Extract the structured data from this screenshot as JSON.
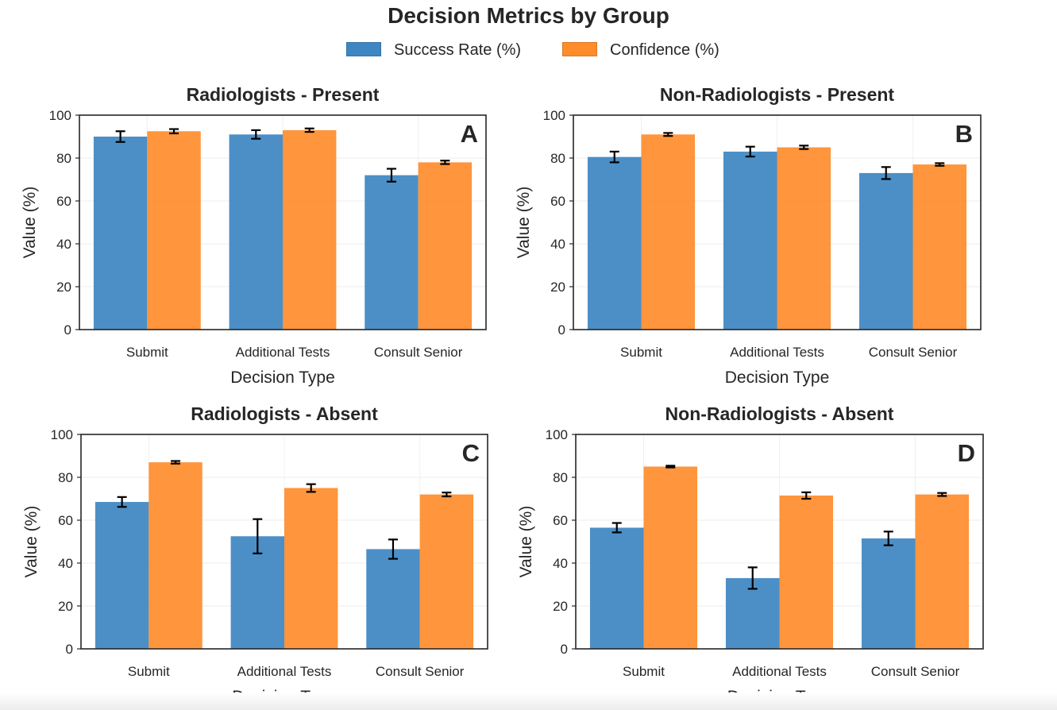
{
  "figure": {
    "title": "Decision Metrics by Group",
    "legend": [
      {
        "label": "Success Rate (%)",
        "color": "#3d86c2"
      },
      {
        "label": "Confidence (%)",
        "color": "#ff8c2b"
      }
    ]
  },
  "chart_data": [
    {
      "type": "bar",
      "panel_letter": "A",
      "title": "Radiologists - Present",
      "xlabel": "Decision Type",
      "ylabel": "Value (%)",
      "ylim": [
        0,
        100
      ],
      "yticks": [
        0,
        20,
        40,
        60,
        80,
        100
      ],
      "grid": true,
      "categories": [
        "Submit",
        "Additional Tests",
        "Consult Senior"
      ],
      "series": [
        {
          "name": "Success Rate (%)",
          "values": [
            90,
            91,
            72
          ],
          "errors": [
            2.5,
            2,
            3
          ]
        },
        {
          "name": "Confidence (%)",
          "values": [
            92.5,
            93,
            78
          ],
          "errors": [
            1,
            0.8,
            0.8
          ]
        }
      ]
    },
    {
      "type": "bar",
      "panel_letter": "B",
      "title": "Non-Radiologists - Present",
      "xlabel": "Decision Type",
      "ylabel": "Value (%)",
      "ylim": [
        0,
        100
      ],
      "yticks": [
        0,
        20,
        40,
        60,
        80,
        100
      ],
      "grid": true,
      "categories": [
        "Submit",
        "Additional Tests",
        "Consult Senior"
      ],
      "series": [
        {
          "name": "Success Rate (%)",
          "values": [
            80.5,
            83,
            73
          ],
          "errors": [
            2.5,
            2.3,
            2.8
          ]
        },
        {
          "name": "Confidence (%)",
          "values": [
            91,
            85,
            77
          ],
          "errors": [
            0.7,
            0.8,
            0.6
          ]
        }
      ]
    },
    {
      "type": "bar",
      "panel_letter": "C",
      "title": "Radiologists - Absent",
      "xlabel": "Decision Type",
      "ylabel": "Value (%)",
      "ylim": [
        0,
        100
      ],
      "yticks": [
        0,
        20,
        40,
        60,
        80,
        100
      ],
      "grid": true,
      "categories": [
        "Submit",
        "Additional Tests",
        "Consult Senior"
      ],
      "series": [
        {
          "name": "Success Rate (%)",
          "values": [
            68.5,
            52.5,
            46.5
          ],
          "errors": [
            2.3,
            8,
            4.5
          ]
        },
        {
          "name": "Confidence (%)",
          "values": [
            87,
            75,
            72
          ],
          "errors": [
            0.6,
            1.8,
            0.9
          ]
        }
      ]
    },
    {
      "type": "bar",
      "panel_letter": "D",
      "title": "Non-Radiologists - Absent",
      "xlabel": "Decision Type",
      "ylabel": "Value (%)",
      "ylim": [
        0,
        100
      ],
      "yticks": [
        0,
        20,
        40,
        60,
        80,
        100
      ],
      "grid": true,
      "categories": [
        "Submit",
        "Additional Tests",
        "Consult Senior"
      ],
      "series": [
        {
          "name": "Success Rate (%)",
          "values": [
            56.5,
            33,
            51.5
          ],
          "errors": [
            2.2,
            5,
            3.2
          ]
        },
        {
          "name": "Confidence (%)",
          "values": [
            85,
            71.5,
            72
          ],
          "errors": [
            0.4,
            1.5,
            0.7
          ]
        }
      ]
    }
  ]
}
